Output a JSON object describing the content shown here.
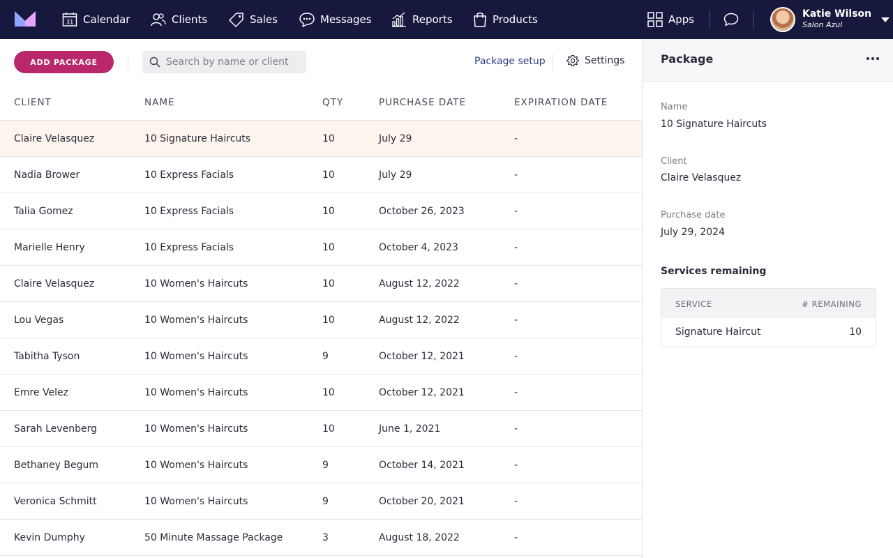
{
  "nav": {
    "items": [
      {
        "label": "Calendar",
        "icon": "calendar-icon"
      },
      {
        "label": "Clients",
        "icon": "clients-icon"
      },
      {
        "label": "Sales",
        "icon": "tag-icon"
      },
      {
        "label": "Messages",
        "icon": "chat-bubble-icon"
      },
      {
        "label": "Reports",
        "icon": "bar-chart-icon"
      },
      {
        "label": "Products",
        "icon": "shopping-bag-icon"
      }
    ],
    "calendar_day": "31",
    "apps_label": "Apps",
    "user": {
      "name": "Katie Wilson",
      "org": "Salon Azul"
    }
  },
  "toolbar": {
    "add_label": "ADD PACKAGE",
    "search_placeholder": "Search by name or client",
    "setup_label": "Package setup",
    "settings_label": "Settings"
  },
  "table": {
    "headers": [
      "CLIENT",
      "NAME",
      "QTY",
      "PURCHASE DATE",
      "EXPIRATION DATE"
    ],
    "rows": [
      {
        "client": "Claire Velasquez",
        "name": "10 Signature Haircuts",
        "qty": "10",
        "purchase": "July 29",
        "expiration": "-"
      },
      {
        "client": "Nadia Brower",
        "name": "10 Express Facials",
        "qty": "10",
        "purchase": "July 29",
        "expiration": "-"
      },
      {
        "client": "Talia Gomez",
        "name": "10 Express Facials",
        "qty": "10",
        "purchase": "October 26, 2023",
        "expiration": "-"
      },
      {
        "client": "Marielle Henry",
        "name": "10 Express Facials",
        "qty": "10",
        "purchase": "October 4, 2023",
        "expiration": "-"
      },
      {
        "client": "Claire Velasquez",
        "name": "10 Women's Haircuts",
        "qty": "10",
        "purchase": "August 12, 2022",
        "expiration": "-"
      },
      {
        "client": "Lou Vegas",
        "name": "10 Women's Haircuts",
        "qty": "10",
        "purchase": "August 12, 2022",
        "expiration": "-"
      },
      {
        "client": "Tabitha Tyson",
        "name": "10 Women's Haircuts",
        "qty": "9",
        "purchase": "October 12, 2021",
        "expiration": "-"
      },
      {
        "client": "Emre Velez",
        "name": "10 Women's Haircuts",
        "qty": "10",
        "purchase": "October 12, 2021",
        "expiration": "-"
      },
      {
        "client": "Sarah Levenberg",
        "name": "10 Women's Haircuts",
        "qty": "10",
        "purchase": "June 1, 2021",
        "expiration": "-"
      },
      {
        "client": "Bethaney Begum",
        "name": "10 Women's Haircuts",
        "qty": "9",
        "purchase": "October 14, 2021",
        "expiration": "-"
      },
      {
        "client": "Veronica Schmitt",
        "name": "10 Women's Haircuts",
        "qty": "9",
        "purchase": "October 20, 2021",
        "expiration": "-"
      },
      {
        "client": "Kevin Dumphy",
        "name": "50 Minute Massage Package",
        "qty": "3",
        "purchase": "August 18, 2022",
        "expiration": "-"
      }
    ]
  },
  "panel": {
    "title": "Package",
    "name_label": "Name",
    "name_value": "10 Signature Haircuts",
    "client_label": "Client",
    "client_value": "Claire Velasquez",
    "purchase_label": "Purchase date",
    "purchase_value": "July 29, 2024",
    "services_title": "Services remaining",
    "services_headers": [
      "SERVICE",
      "# REMAINING"
    ],
    "services": [
      {
        "service": "Signature Haircut",
        "remaining": "10"
      }
    ]
  },
  "colors": {
    "nav_bg": "#17183e",
    "accent": "#b8286b",
    "link": "#2b3a84",
    "selected_row": "#fdf4ee"
  }
}
